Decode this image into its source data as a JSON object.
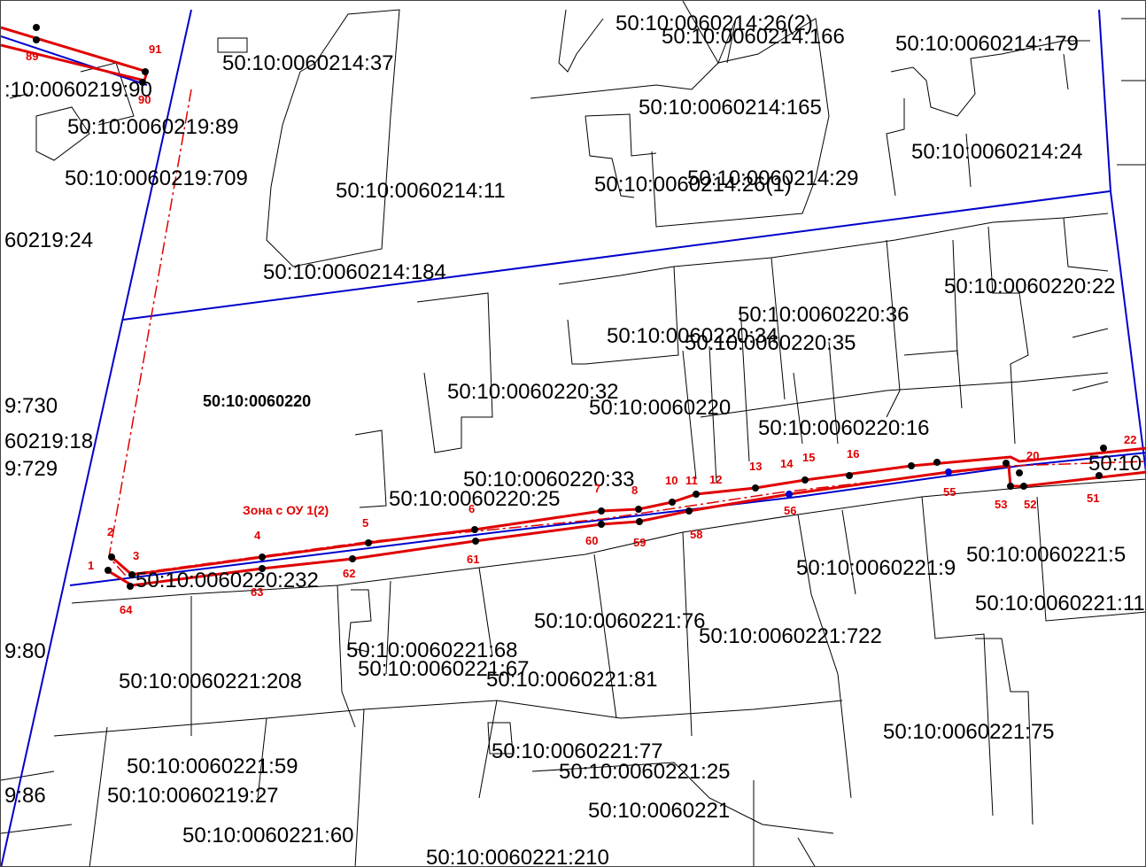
{
  "map": {
    "quarter_label": "50:10:0060220",
    "zone_label": "Зона с ОУ 1(2)",
    "colors": {
      "parcel_line": "#000000",
      "quarter_boundary": "#0000cc",
      "zone_line": "#e00000"
    },
    "labels": [
      "50:10:0060214:26(2)",
      "50:10:0060214:166",
      "50:10:0060214:179",
      "50:10:0060214:37",
      ":10:0060219:90",
      "50:10:0060214:165",
      "50:10:0060219:89",
      "50:10:0060214:24",
      "50:10:0060219:709",
      "50:10:0060214:11",
      "50:10:0060214:29",
      "50:10:0060214:26(1)",
      "60219:24",
      "50:10:0060214:184",
      "50:10:0060220:22",
      "50:10:0060220:36",
      "50:10:0060220:34",
      "50:10:0060220:35",
      "9:730",
      "50:10:0060220:32",
      "50:10:0060220",
      "60219:18",
      "50:10:0060220:16",
      "9:729",
      "50:10:0060220:25",
      "50:10:0060220:33",
      "50:10",
      "50:10:0060220:232",
      "50:10:0060221:9",
      "50:10:0060221:5",
      "50:10:0060221:11",
      "9:80",
      "50:10:0060221:76",
      "50:10:0060221:722",
      "50:10:0060221:68",
      "50:10:0060221:208",
      "50:10:0060221:67",
      "50:10:0060221:81",
      "50:10:0060221:75",
      "50:10:0060221:77",
      "50:10:0060221:25",
      "50:10:0060221:59",
      "9:86",
      "50:10:0060219:27",
      "50:10:0060221",
      "50:10:0060221:60",
      "50:10:0060221:210"
    ],
    "points": [
      "1",
      "2",
      "3",
      "4",
      "5",
      "6",
      "7",
      "8",
      "10",
      "11",
      "12",
      "13",
      "14",
      "15",
      "16",
      "20",
      "22",
      "51",
      "52",
      "53",
      "55",
      "56",
      "58",
      "59",
      "60",
      "61",
      "62",
      "63",
      "64",
      "89",
      "90",
      "91"
    ]
  }
}
